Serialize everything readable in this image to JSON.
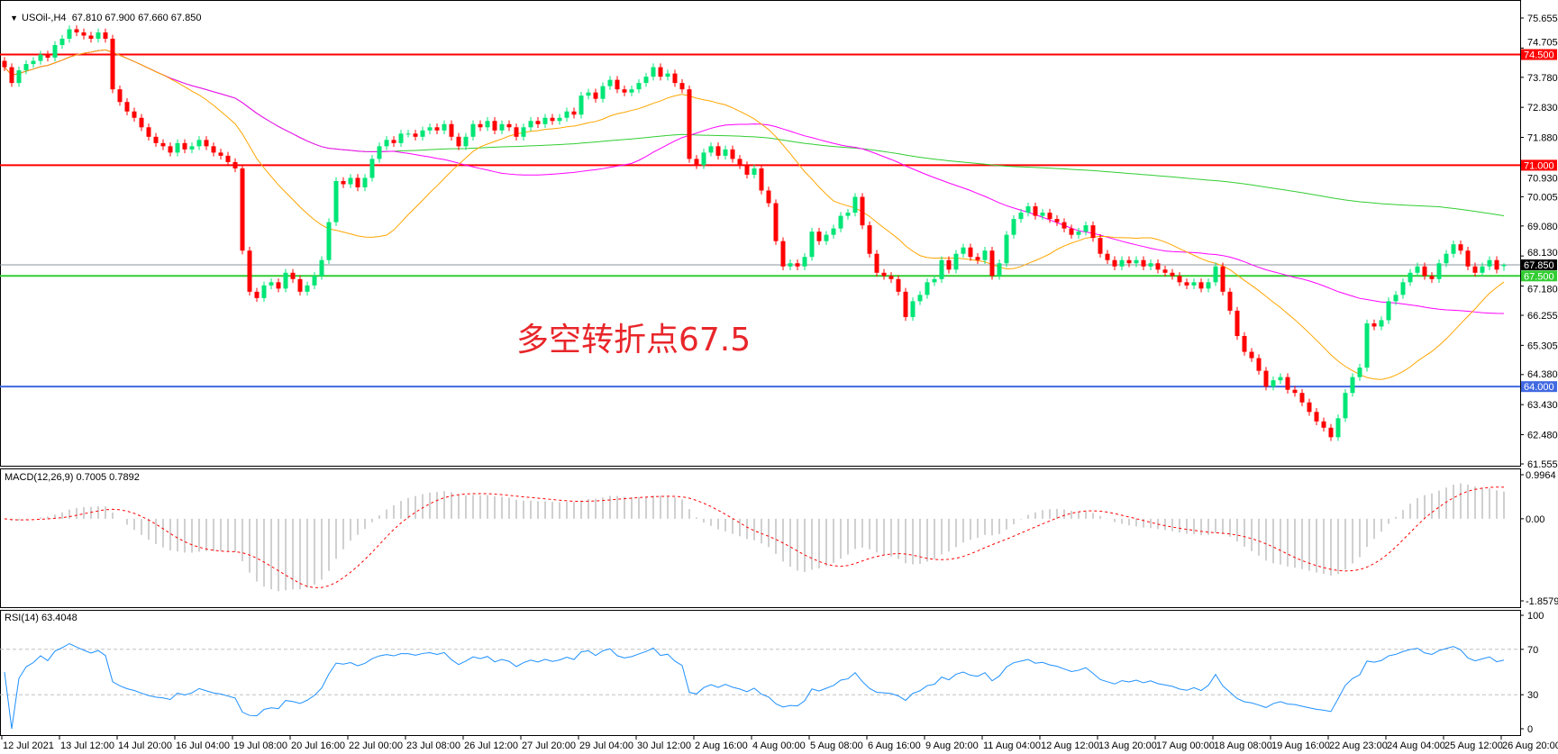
{
  "header": {
    "symbol": "USOil-,H4",
    "ohlc": "67.810 67.900 67.660 67.850"
  },
  "annotation": "多空转折点67.5",
  "colors": {
    "bull": "#00e676",
    "bear": "#ff0000",
    "ma_fast": "#ffa500",
    "ma_mid": "#ff00ff",
    "ma_slow": "#32cd32",
    "macd_hist": "#c0c0c0",
    "macd_signal": "#ff0000",
    "rsi": "#1e90ff"
  },
  "chart_data": [
    {
      "type": "candlestick",
      "title": "USOil-,H4",
      "timeframe": "H4",
      "ylim": [
        61.555,
        75.655
      ],
      "y_ticks": [
        "75.655",
        "74.705",
        "73.780",
        "72.830",
        "71.880",
        "70.930",
        "70.005",
        "69.080",
        "68.130",
        "67.180",
        "66.255",
        "65.305",
        "64.380",
        "63.430",
        "62.480",
        "61.555"
      ],
      "x_tick_labels": [
        "12 Jul 2021",
        "13 Jul 12:00",
        "14 Jul 20:00",
        "16 Jul 04:00",
        "19 Jul 08:00",
        "20 Jul 16:00",
        "22 Jul 00:00",
        "23 Jul 08:00",
        "26 Jul 12:00",
        "27 Jul 20:00",
        "29 Jul 04:00",
        "30 Jul 12:00",
        "2 Aug 16:00",
        "4 Aug 00:00",
        "5 Aug 08:00",
        "6 Aug 16:00",
        "9 Aug 20:00",
        "11 Aug 04:00",
        "12 Aug 12:00",
        "13 Aug 20:00",
        "17 Aug 00:00",
        "18 Aug 08:00",
        "19 Aug 16:00",
        "22 Aug 23:00",
        "24 Aug 04:00",
        "25 Aug 12:00",
        "26 Aug 20:00"
      ],
      "last_bar": {
        "open": 67.81,
        "high": 67.9,
        "low": 67.66,
        "close": 67.85
      },
      "close": [
        74.1,
        73.6,
        74.0,
        74.2,
        74.3,
        74.5,
        74.4,
        74.8,
        75.0,
        75.3,
        75.2,
        75.1,
        75.0,
        75.2,
        75.0,
        73.4,
        73.0,
        72.7,
        72.5,
        72.2,
        71.9,
        71.7,
        71.6,
        71.4,
        71.7,
        71.5,
        71.6,
        71.8,
        71.6,
        71.4,
        71.3,
        71.1,
        70.9,
        68.3,
        67.0,
        66.8,
        67.2,
        67.3,
        67.1,
        67.6,
        67.4,
        67.0,
        67.2,
        67.5,
        68.0,
        69.2,
        70.5,
        70.4,
        70.6,
        70.3,
        70.6,
        71.2,
        71.6,
        71.8,
        71.7,
        72.0,
        72.0,
        71.9,
        72.1,
        72.2,
        72.1,
        72.3,
        71.9,
        71.6,
        71.9,
        72.3,
        72.2,
        72.4,
        72.1,
        72.3,
        72.2,
        71.9,
        72.2,
        72.4,
        72.3,
        72.5,
        72.4,
        72.5,
        72.7,
        72.6,
        73.2,
        73.3,
        73.1,
        73.5,
        73.7,
        73.4,
        73.3,
        73.4,
        73.6,
        73.8,
        74.1,
        73.8,
        73.9,
        73.6,
        73.4,
        71.2,
        71.0,
        71.4,
        71.6,
        71.3,
        71.5,
        71.2,
        71.0,
        70.7,
        70.9,
        70.2,
        69.8,
        68.6,
        67.8,
        67.9,
        67.8,
        68.1,
        68.9,
        68.6,
        68.8,
        69.0,
        69.4,
        69.5,
        70.0,
        69.1,
        68.2,
        67.6,
        67.5,
        67.4,
        67.0,
        66.2,
        66.7,
        66.9,
        67.3,
        67.4,
        68.0,
        67.7,
        68.2,
        68.4,
        68.1,
        68.0,
        68.3,
        67.5,
        67.9,
        68.8,
        69.3,
        69.5,
        69.7,
        69.4,
        69.5,
        69.3,
        69.2,
        69.0,
        68.8,
        68.9,
        69.1,
        68.7,
        68.2,
        68.0,
        67.8,
        68.0,
        67.9,
        68.0,
        67.8,
        67.9,
        67.7,
        67.6,
        67.5,
        67.3,
        67.2,
        67.3,
        67.1,
        67.3,
        67.8,
        67.0,
        66.4,
        65.6,
        65.1,
        64.9,
        64.5,
        64.0,
        64.2,
        64.3,
        63.9,
        63.8,
        63.5,
        63.2,
        62.9,
        62.7,
        62.4,
        63.0,
        63.8,
        64.3,
        64.6,
        66.0,
        65.9,
        66.1,
        66.7,
        66.9,
        67.3,
        67.6,
        67.8,
        67.5,
        67.4,
        67.9,
        68.2,
        68.5,
        68.3,
        67.8,
        67.6,
        67.8,
        68.0,
        67.7,
        67.85
      ],
      "levels": [
        {
          "value": "74.500",
          "color": "#ff0000"
        },
        {
          "value": "71.000",
          "color": "#ff0000"
        },
        {
          "value": "67.500",
          "color": "#32cd32"
        },
        {
          "value": "64.000",
          "color": "#4169e1"
        }
      ],
      "bid": {
        "value": "67.850",
        "color": "#000000"
      }
    },
    {
      "type": "bar",
      "title": "MACD(12,26,9)",
      "values_label": "0.7005 0.7892",
      "ylim": [
        -1.8579,
        0.9964
      ],
      "y_ticks": [
        "0.9964",
        "0.00",
        "-1.8579"
      ]
    },
    {
      "type": "line",
      "title": "RSI(14)",
      "value_label": "63.4048",
      "ylim": [
        0,
        100
      ],
      "y_ticks": [
        "100",
        "70",
        "30",
        "0"
      ],
      "levels": [
        70,
        30
      ]
    }
  ]
}
